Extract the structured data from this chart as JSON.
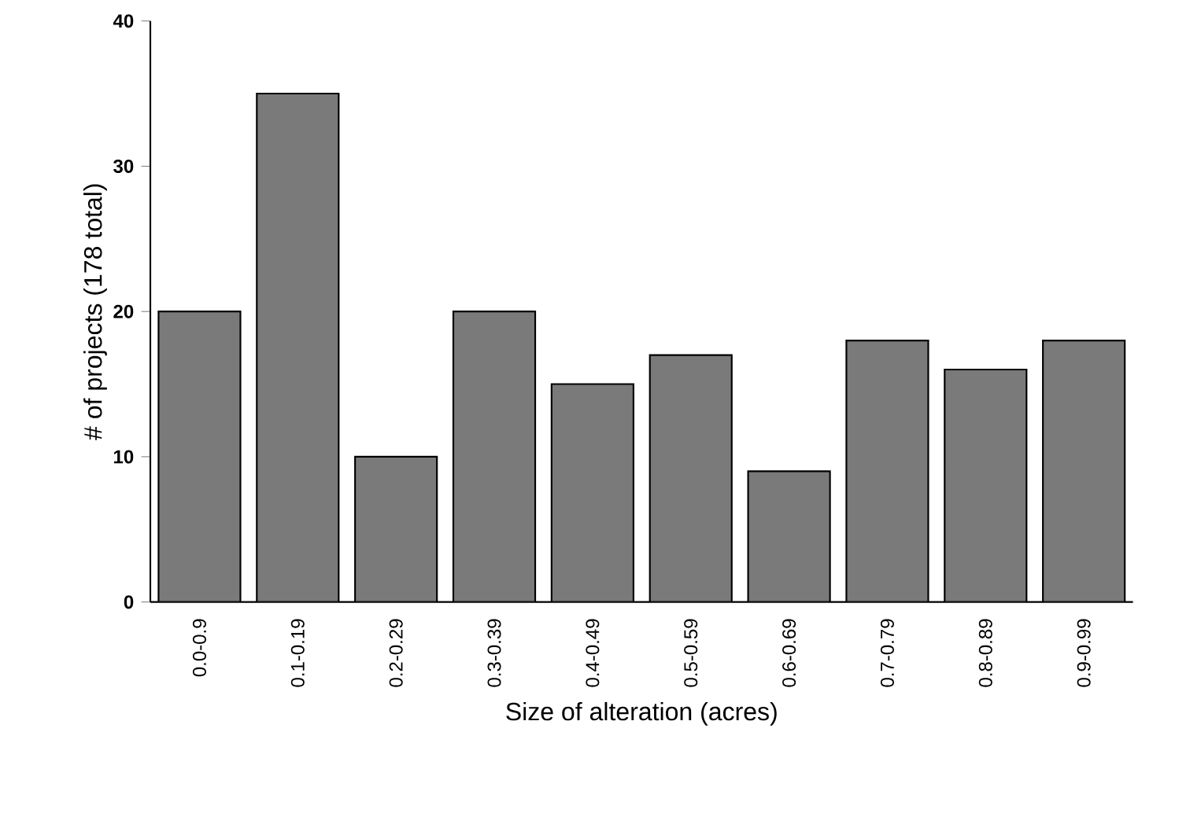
{
  "chart_data": {
    "type": "bar",
    "xlabel": "Size of alteration (acres)",
    "ylabel": "# of projects (178 total)",
    "categories": [
      "0.0-0.9",
      "0.1-0.19",
      "0.2-0.29",
      "0.3-0.39",
      "0.4-0.49",
      "0.5-0.59",
      "0.6-0.69",
      "0.7-0.79",
      "0.8-0.89",
      "0.9-0.99"
    ],
    "values": [
      20,
      35,
      10,
      20,
      15,
      17,
      9,
      18,
      16,
      18
    ],
    "color": "#7a7a7a",
    "ylim": [
      0,
      40
    ],
    "yticks": [
      0,
      10,
      20,
      30,
      40
    ],
    "grid": false
  }
}
